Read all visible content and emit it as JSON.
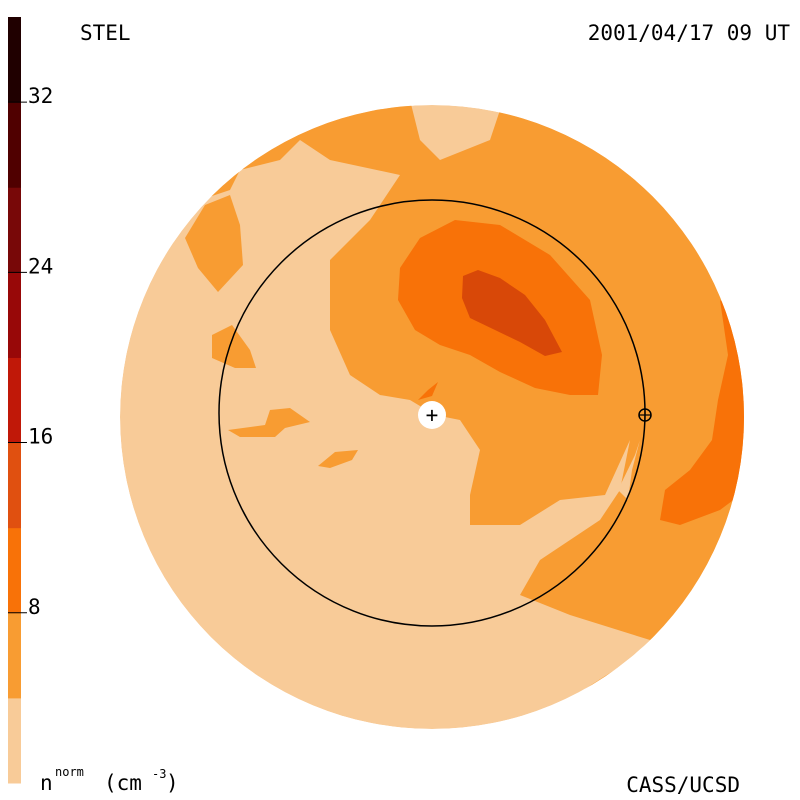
{
  "header": {
    "left_label": "STEL",
    "right_label": "2001/04/17 09 UT"
  },
  "footer": {
    "unit_symbol": "n",
    "unit_superscript": "norm",
    "unit_open": "(cm",
    "unit_exponent": "-3",
    "unit_close": ")",
    "credit": "CASS/UCSD"
  },
  "colorbar": {
    "ticks": [
      {
        "value": 8,
        "label": "8"
      },
      {
        "value": 16,
        "label": "16"
      },
      {
        "value": 24,
        "label": "24"
      },
      {
        "value": 32,
        "label": "32"
      }
    ],
    "range": [
      0,
      36
    ],
    "bands": [
      {
        "from": 0,
        "to": 4,
        "color": "#f8cb98"
      },
      {
        "from": 4,
        "to": 8,
        "color": "#f89c32"
      },
      {
        "from": 8,
        "to": 12,
        "color": "#f87208"
      },
      {
        "from": 12,
        "to": 16,
        "color": "#e05010"
      },
      {
        "from": 16,
        "to": 20,
        "color": "#c01808"
      },
      {
        "from": 20,
        "to": 24,
        "color": "#980808"
      },
      {
        "from": 24,
        "to": 28,
        "color": "#780808"
      },
      {
        "from": 28,
        "to": 32,
        "color": "#500000"
      },
      {
        "from": 32,
        "to": 36,
        "color": "#200000"
      }
    ]
  },
  "map": {
    "sun_marker": "+",
    "earth_marker": "earth-symbol",
    "colors": {
      "level1": "#f8cb98",
      "level2": "#f89c32",
      "level3": "#f87208",
      "level4": "#d84808"
    }
  }
}
